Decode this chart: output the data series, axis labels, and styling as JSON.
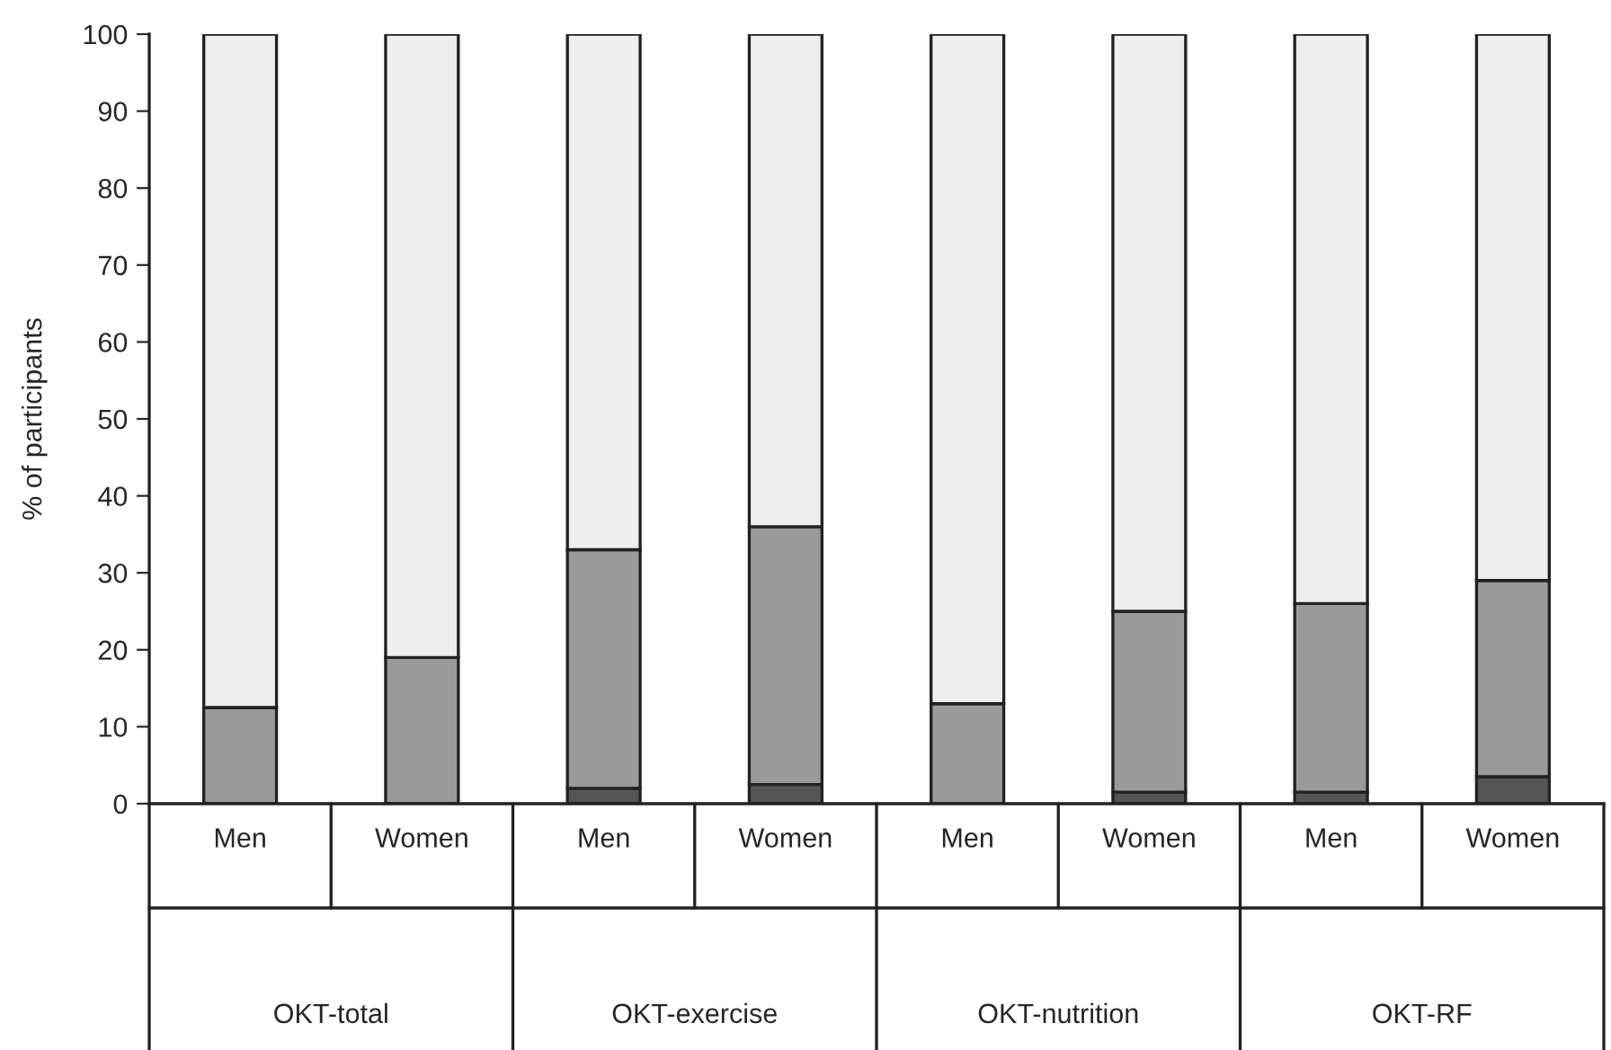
{
  "chart_data": {
    "type": "bar",
    "stacked": true,
    "ylabel": "% of participants",
    "categories": [
      "Men",
      "Women",
      "Men",
      "Women",
      "Men",
      "Women",
      "Men",
      "Women"
    ],
    "series": [
      {
        "color": "#555555",
        "values": [
          0,
          0,
          2,
          2.5,
          0,
          1.5,
          1.5,
          3.5
        ]
      },
      {
        "color": "#9a9a9a",
        "values": [
          12.5,
          19,
          31,
          33.5,
          13,
          23.5,
          24.5,
          25.5
        ]
      },
      {
        "color": "#eeeeee",
        "values": [
          87.5,
          81,
          67,
          64,
          87,
          75,
          74,
          71
        ]
      }
    ],
    "annotations": [
      "OKT-total",
      "OKT-exercise",
      "OKT-nutrition",
      "OKT-RF"
    ],
    "ylim": [
      0,
      100
    ],
    "yticks": [
      0,
      10,
      20,
      30,
      40,
      50,
      60,
      70,
      80,
      90,
      100
    ],
    "grid": false,
    "legend": false
  }
}
